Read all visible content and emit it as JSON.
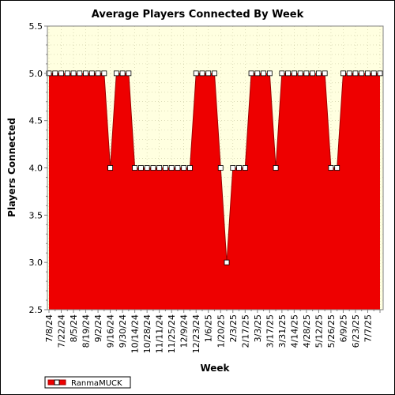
{
  "chart_data": {
    "type": "area",
    "title": "Average Players Connected By Week",
    "xlabel": "Week",
    "ylabel": "Players Connected",
    "ylim": [
      2.5,
      5.5
    ],
    "yticks": [
      "2.5",
      "3.0",
      "3.5",
      "4.0",
      "4.5",
      "5.0",
      "5.5"
    ],
    "grid": true,
    "legend_position": "bottom-left",
    "colors": {
      "fill": "#ee0000",
      "plot_bg": "#ffffe0",
      "grid": "#c8c8a0",
      "marker": "#ffffff"
    },
    "x_tick_labels": [
      "7/8/24",
      "7/22/24",
      "8/5/24",
      "8/19/24",
      "9/2/24",
      "9/16/24",
      "9/30/24",
      "10/14/24",
      "10/28/24",
      "11/11/24",
      "11/25/24",
      "12/9/24",
      "12/23/24",
      "1/6/25",
      "1/20/25",
      "2/3/25",
      "2/17/25",
      "3/3/25",
      "3/17/25",
      "3/31/25",
      "4/14/25",
      "4/28/25",
      "5/12/25",
      "5/26/25",
      "6/9/25",
      "6/23/25",
      "7/7/25"
    ],
    "series": [
      {
        "name": "RanmaMUCK",
        "values": [
          5,
          5,
          5,
          5,
          5,
          5,
          5,
          5,
          5,
          5,
          4,
          5,
          5,
          5,
          4,
          4,
          4,
          4,
          4,
          4,
          4,
          4,
          4,
          4,
          5,
          5,
          5,
          5,
          4,
          3,
          4,
          4,
          4,
          5,
          5,
          5,
          5,
          4,
          5,
          5,
          5,
          5,
          5,
          5,
          5,
          5,
          4,
          4,
          5,
          5,
          5,
          5,
          5,
          5,
          5
        ]
      }
    ]
  }
}
